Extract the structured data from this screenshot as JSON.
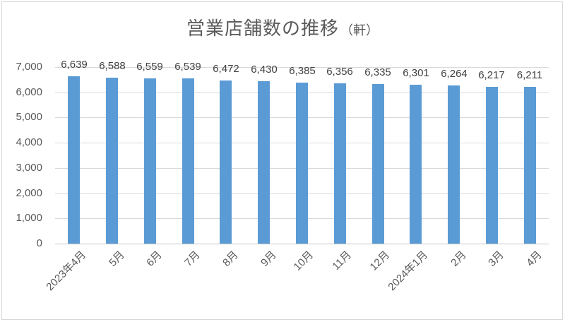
{
  "title": {
    "main": "営業店舗数の推移",
    "unit": "（軒）"
  },
  "colors": {
    "bar": "#5B9BD5",
    "gridline": "#D9D9D9",
    "axis_line": "#C6C6C6",
    "title_text": "#595959",
    "axis_text": "#595959",
    "data_label_text": "#404040",
    "chart_border": "#D9D9D9",
    "background": "#FFFFFF"
  },
  "chart_data": {
    "type": "bar",
    "title": "営業店舗数の推移（軒）",
    "categories": [
      "2023年4月",
      "5月",
      "6月",
      "7月",
      "8月",
      "9月",
      "10月",
      "11月",
      "12月",
      "2024年1月",
      "2月",
      "3月",
      "4月"
    ],
    "values": [
      6639,
      6588,
      6559,
      6539,
      6472,
      6430,
      6385,
      6356,
      6335,
      6301,
      6264,
      6217,
      6211
    ],
    "data_labels": [
      "6,639",
      "6,588",
      "6,559",
      "6,539",
      "6,472",
      "6,430",
      "6,385",
      "6,356",
      "6,335",
      "6,301",
      "6,264",
      "6,217",
      "6,211"
    ],
    "xlabel": "",
    "ylabel": "",
    "ylim": [
      0,
      7000
    ],
    "ytick_interval": 1000,
    "ytick_labels": [
      "0",
      "1,000",
      "2,000",
      "3,000",
      "4,000",
      "5,000",
      "6,000",
      "7,000"
    ],
    "grid": true,
    "legend": false,
    "bar_color": "#5B9BD5"
  }
}
